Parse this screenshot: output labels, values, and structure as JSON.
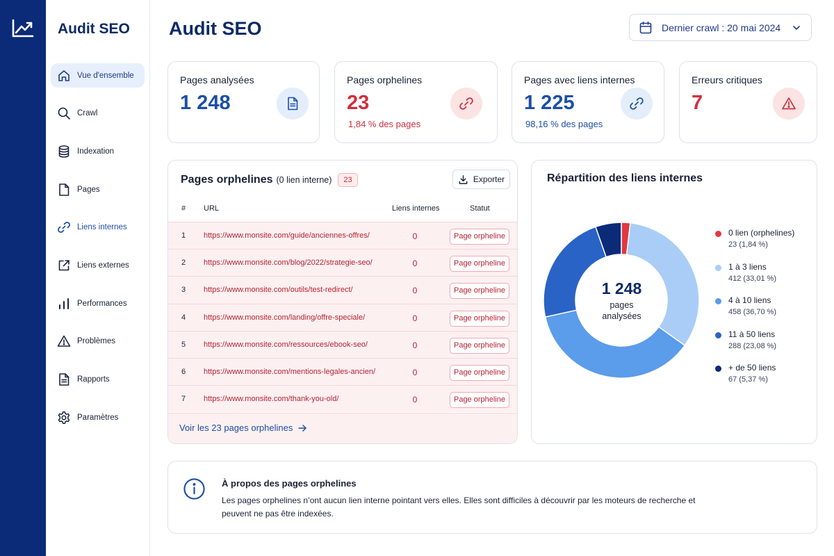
{
  "app": {
    "brand": "Audit SEO",
    "logo_icon": "trend-up-icon"
  },
  "sidebar": {
    "items": [
      {
        "label": "Vue d'ensemble",
        "icon": "home-icon",
        "active": true
      },
      {
        "label": "Crawl",
        "icon": "search-icon"
      },
      {
        "label": "Indexation",
        "icon": "database-icon"
      },
      {
        "label": "Pages",
        "icon": "file-icon"
      },
      {
        "label": "Liens internes",
        "icon": "link-icon"
      },
      {
        "label": "Liens externes",
        "icon": "external-link-icon"
      },
      {
        "label": "Performances",
        "icon": "bar-chart-icon"
      },
      {
        "label": "Problèmes",
        "icon": "warning-icon"
      },
      {
        "label": "Rapports",
        "icon": "report-icon"
      },
      {
        "label": "Paramètres",
        "icon": "gear-icon"
      }
    ]
  },
  "header": {
    "title": "Audit SEO",
    "crawl_selector": "Dernier crawl : 20 mai 2024"
  },
  "stats": [
    {
      "label": "Pages analysées",
      "value": "1 248",
      "sub": "",
      "tone": "blue",
      "icon": "document-icon"
    },
    {
      "label": "Pages orphelines",
      "value": "23",
      "sub": "1,84 % des pages",
      "tone": "red",
      "icon": "link-icon"
    },
    {
      "label": "Pages avec liens internes",
      "value": "1 225",
      "sub": "98,16 % des pages",
      "tone": "blue",
      "icon": "link-icon"
    },
    {
      "label": "Erreurs critiques",
      "value": "7",
      "sub": "",
      "tone": "red",
      "icon": "warning-icon"
    }
  ],
  "orphans": {
    "title": "Pages orphelines",
    "subtitle": "(0 lien interne)",
    "count_badge": "23",
    "export_label": "Exporter",
    "columns": [
      "#",
      "URL",
      "Liens internes",
      "Statut"
    ],
    "rows": [
      {
        "num": "1",
        "url": "https://www.monsite.com/guide/anciennes-offres/",
        "links": "0",
        "status": "Page orpheline"
      },
      {
        "num": "2",
        "url": "https://www.monsite.com/blog/2022/strategie-seo/",
        "links": "0",
        "status": "Page orpheline"
      },
      {
        "num": "3",
        "url": "https://www.monsite.com/outils/test-redirect/",
        "links": "0",
        "status": "Page orpheline"
      },
      {
        "num": "4",
        "url": "https://www.monsite.com/landing/offre-speciale/",
        "links": "0",
        "status": "Page orpheline"
      },
      {
        "num": "5",
        "url": "https://www.monsite.com/ressources/ebook-seo/",
        "links": "0",
        "status": "Page orpheline"
      },
      {
        "num": "6",
        "url": "https://www.monsite.com/mentions-legales-ancien/",
        "links": "0",
        "status": "Page orpheline"
      },
      {
        "num": "7",
        "url": "https://www.monsite.com/thank-you-old/",
        "links": "0",
        "status": "Page orpheline"
      }
    ],
    "view_all": "Voir les 23 pages orphelines"
  },
  "distribution": {
    "title": "Répartition des liens internes",
    "total": "1 248",
    "caption": "pages analysées",
    "segments": [
      {
        "label": "0 lien (orphelines)",
        "detail": "23 (1,84 %)",
        "value": 23,
        "color": "#e03a3e"
      },
      {
        "label": "1 à 3 liens",
        "detail": "412 (33,01 %)",
        "value": 412,
        "color": "#a9cdf7"
      },
      {
        "label": "4 à 10 liens",
        "detail": "458 (36,70 %)",
        "value": 458,
        "color": "#5b9ceb"
      },
      {
        "label": "11 à 50 liens",
        "detail": "288 (23,08 %)",
        "value": 288,
        "color": "#2a63c6"
      },
      {
        "label": "+ de 50 liens",
        "detail": "67 (5,37 %)",
        "value": 67,
        "color": "#0b2a78"
      }
    ]
  },
  "info": {
    "title": "À propos des pages orphelines",
    "text": "Les pages orphelines n’ont aucun lien interne pointant vers elles. Elles sont difficiles à découvrir par les moteurs de recherche et peuvent ne pas être indexées."
  }
}
